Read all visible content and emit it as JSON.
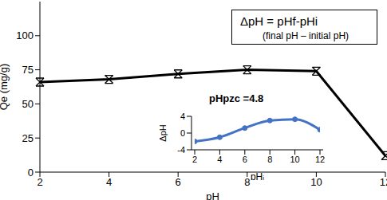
{
  "chart_data": [
    {
      "type": "line",
      "categories": [
        "2",
        "4",
        "6",
        "8",
        "10",
        "12"
      ],
      "values": [
        66,
        68,
        72,
        75,
        74,
        12
      ],
      "color": "#000000",
      "marker": "x",
      "x_label": "pH",
      "y_label": "Qe (mg/g)",
      "ylim": [
        0,
        125
      ],
      "yticks": [
        0,
        25,
        50,
        75,
        100
      ],
      "grid": false,
      "annotations": [
        "ΔpH = pHf-pHi",
        "(final pH – initial pH)"
      ]
    },
    {
      "type": "line",
      "x": [
        2,
        4,
        6,
        8,
        10,
        12
      ],
      "values": [
        -2,
        -1,
        1.2,
        3,
        3.3,
        0.8
      ],
      "color": "#4472c4",
      "marker": "circle",
      "x_label": "pHᵢ",
      "y_label": "ΔpH",
      "xlim": [
        2,
        12
      ],
      "xticks": [
        2,
        4,
        6,
        8,
        10,
        12
      ],
      "ylim": [
        -4,
        4
      ],
      "yticks": [
        -4,
        0,
        4
      ],
      "grid": false,
      "annotations": [
        "pHpzc =4.8"
      ]
    }
  ]
}
